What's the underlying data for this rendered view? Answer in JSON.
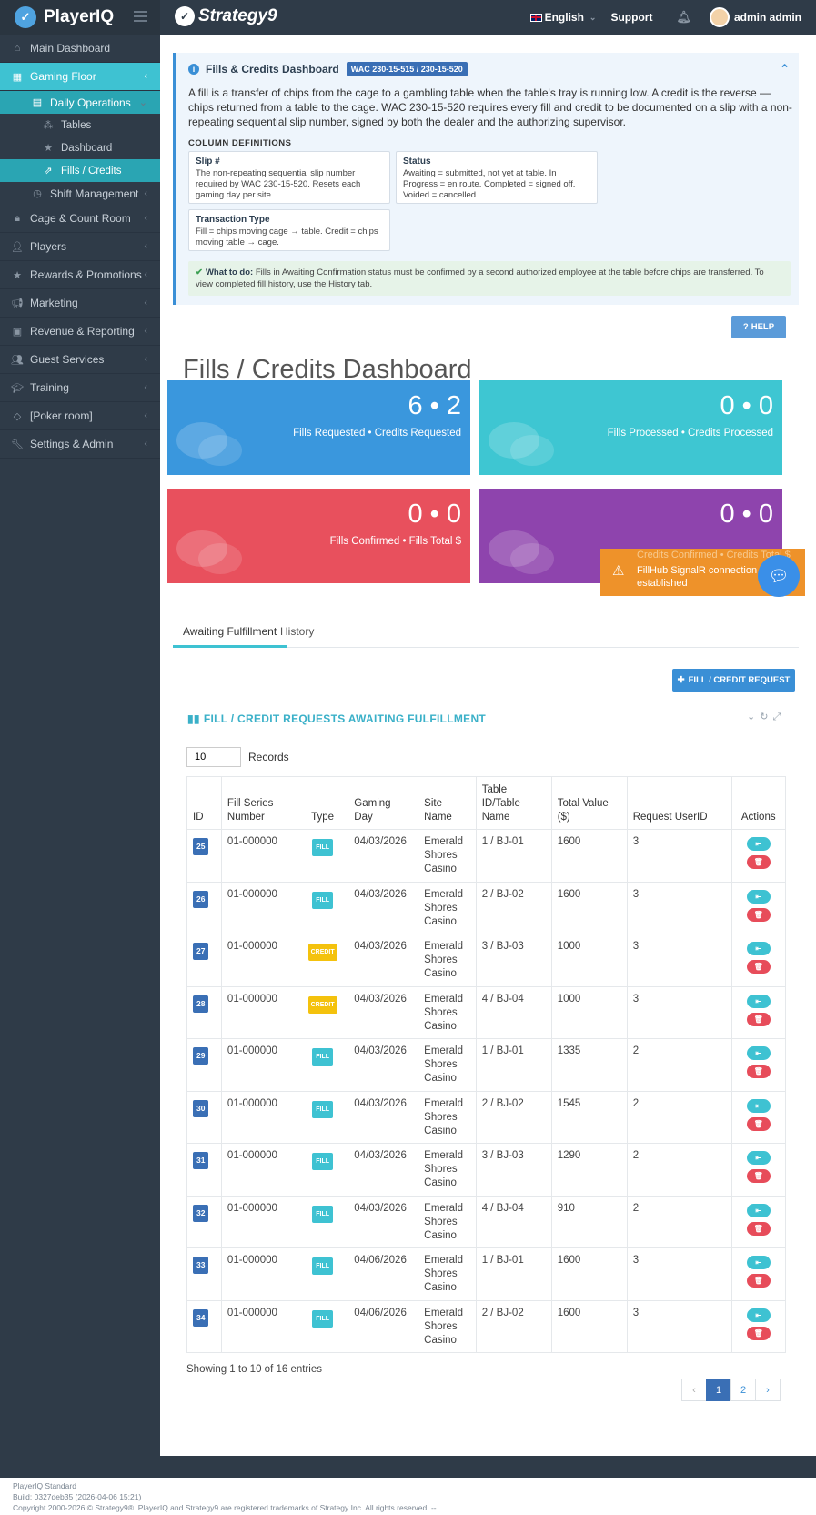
{
  "app": {
    "name": "PlayerIQ",
    "partner": "Strategy9"
  },
  "header": {
    "language": "English",
    "support": "Support",
    "user": "admin admin"
  },
  "sidebar": {
    "items": [
      {
        "label": "Main Dashboard",
        "icon": "home-icon"
      },
      {
        "label": "Gaming Floor",
        "icon": "grid-icon"
      },
      {
        "label": "Daily Operations",
        "icon": "calendar-icon"
      },
      {
        "label": "Tables",
        "icon": "sitemap-icon"
      },
      {
        "label": "Dashboard",
        "icon": "star-icon"
      },
      {
        "label": "Fills / Credits",
        "icon": "external-link-icon"
      },
      {
        "label": "Shift Management",
        "icon": "clock-icon"
      },
      {
        "label": "Cage & Count Room",
        "icon": "lock-icon"
      },
      {
        "label": "Players",
        "icon": "user-icon"
      },
      {
        "label": "Rewards & Promotions",
        "icon": "star-icon"
      },
      {
        "label": "Marketing",
        "icon": "bullhorn-icon"
      },
      {
        "label": "Revenue & Reporting",
        "icon": "money-icon"
      },
      {
        "label": "Guest Services",
        "icon": "users-icon"
      },
      {
        "label": "Training",
        "icon": "graduation-cap-icon"
      },
      {
        "label": "[Poker room]",
        "icon": "diamond-icon"
      },
      {
        "label": "Settings & Admin",
        "icon": "wrench-icon"
      }
    ]
  },
  "info": {
    "title": "Fills & Credits Dashboard",
    "badge": "WAC 230-15-515 / 230-15-520",
    "description": "A fill is a transfer of chips from the cage to a gambling table when the table's tray is running low. A credit is the reverse — chips returned from a table to the cage. WAC 230-15-520 requires every fill and credit to be documented on a slip with a non-repeating sequential slip number, signed by both the dealer and the authorizing supervisor.",
    "column_definitions_label": "COLUMN DEFINITIONS",
    "definitions": [
      {
        "term": "Slip #",
        "text": "The non-repeating sequential slip number required by WAC 230-15-520. Resets each gaming day per site."
      },
      {
        "term": "Status",
        "text": "Awaiting = submitted, not yet at table. In Progress = en route. Completed = signed off. Voided = cancelled."
      },
      {
        "term": "Transaction Type",
        "text": "Fill = chips moving cage → table. Credit = chips moving table → cage."
      }
    ],
    "todo_label": "What to do:",
    "todo_text": "Fills in Awaiting Confirmation status must be confirmed by a second authorized employee at the table before chips are transferred. To view completed fill history, use the History tab."
  },
  "help_label": "HELP",
  "page_title": "Fills / Credits Dashboard",
  "stats": [
    {
      "value": "6 • 2",
      "label": "Fills Requested  •  Credits Requested",
      "color": "#3a97dd"
    },
    {
      "value": "0 • 0",
      "label": "Fills Processed  •  Credits Processed",
      "color": "#3ec6d2"
    },
    {
      "value": "0 • 0",
      "label": "Fills Confirmed  •  Fills Total $",
      "color": "#e8505d"
    },
    {
      "value": "0 • 0",
      "label": "Credits Confirmed  •  Credits Total $",
      "color": "#8e44ad"
    }
  ],
  "toast": {
    "message": "FillHub SignalR connection established"
  },
  "tabs": [
    "Awaiting Fulfillment",
    "History"
  ],
  "request_button": "FILL / CREDIT REQUEST",
  "section_title": "FILL / CREDIT REQUESTS AWAITING FULFILLMENT",
  "records": {
    "value": "10",
    "label": "Records"
  },
  "table": {
    "headers": [
      "ID",
      "Fill Series Number",
      "Type",
      "Gaming Day",
      "Site Name",
      "Table ID/Table Name",
      "Total Value ($)",
      "Request UserID",
      "Actions"
    ],
    "rows": [
      {
        "id": "25",
        "series": "01-000000",
        "type": "FILL",
        "day": "04/03/2026",
        "site": "Emerald Shores Casino",
        "table": "1 / BJ-01",
        "value": "1600",
        "user": "3"
      },
      {
        "id": "26",
        "series": "01-000000",
        "type": "FILL",
        "day": "04/03/2026",
        "site": "Emerald Shores Casino",
        "table": "2 / BJ-02",
        "value": "1600",
        "user": "3"
      },
      {
        "id": "27",
        "series": "01-000000",
        "type": "CREDIT",
        "day": "04/03/2026",
        "site": "Emerald Shores Casino",
        "table": "3 / BJ-03",
        "value": "1000",
        "user": "3"
      },
      {
        "id": "28",
        "series": "01-000000",
        "type": "CREDIT",
        "day": "04/03/2026",
        "site": "Emerald Shores Casino",
        "table": "4 / BJ-04",
        "value": "1000",
        "user": "3"
      },
      {
        "id": "29",
        "series": "01-000000",
        "type": "FILL",
        "day": "04/03/2026",
        "site": "Emerald Shores Casino",
        "table": "1 / BJ-01",
        "value": "1335",
        "user": "2"
      },
      {
        "id": "30",
        "series": "01-000000",
        "type": "FILL",
        "day": "04/03/2026",
        "site": "Emerald Shores Casino",
        "table": "2 / BJ-02",
        "value": "1545",
        "user": "2"
      },
      {
        "id": "31",
        "series": "01-000000",
        "type": "FILL",
        "day": "04/03/2026",
        "site": "Emerald Shores Casino",
        "table": "3 / BJ-03",
        "value": "1290",
        "user": "2"
      },
      {
        "id": "32",
        "series": "01-000000",
        "type": "FILL",
        "day": "04/03/2026",
        "site": "Emerald Shores Casino",
        "table": "4 / BJ-04",
        "value": "910",
        "user": "2"
      },
      {
        "id": "33",
        "series": "01-000000",
        "type": "FILL",
        "day": "04/06/2026",
        "site": "Emerald Shores Casino",
        "table": "1 / BJ-01",
        "value": "1600",
        "user": "3"
      },
      {
        "id": "34",
        "series": "01-000000",
        "type": "FILL",
        "day": "04/06/2026",
        "site": "Emerald Shores Casino",
        "table": "2 / BJ-02",
        "value": "1600",
        "user": "3"
      }
    ]
  },
  "showing": "Showing 1 to 10 of 16 entries",
  "pagination": [
    "‹",
    "1",
    "2",
    "›"
  ],
  "footer": {
    "edition": "PlayerIQ Standard",
    "build": "Build: 0327deb35 (2026-04-06 15:21)",
    "copyright": "Copyright 2000-2026 © Strategy9®. PlayerIQ and Strategy9 are registered trademarks of Strategy Inc. All rights reserved. --"
  }
}
